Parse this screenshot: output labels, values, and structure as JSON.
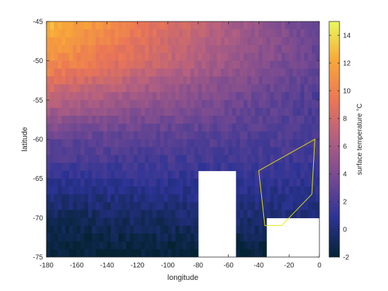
{
  "chart_data": {
    "type": "heatmap",
    "title": "",
    "xlabel": "longitude",
    "ylabel": "latitude",
    "xlim": [
      -180,
      0
    ],
    "ylim": [
      -75,
      -45
    ],
    "xticks": [
      -180,
      -160,
      -140,
      -120,
      -100,
      -80,
      -60,
      -40,
      -20,
      0
    ],
    "yticks": [
      -75,
      -70,
      -65,
      -60,
      -55,
      -50,
      -45
    ],
    "grid": false,
    "colorbar": {
      "label": "surface temperature °C",
      "range": [
        -2,
        15
      ],
      "ticks": [
        -2,
        0,
        2,
        4,
        6,
        8,
        10,
        12,
        14
      ],
      "colormap": [
        "#042333",
        "#2c3395",
        "#744992",
        "#b15f82",
        "#eb7655",
        "#f8a739",
        "#e8fa5b"
      ]
    },
    "temperature_trend": {
      "lat": [
        -45,
        -50,
        -55,
        -60,
        -65,
        -70,
        -75
      ],
      "west_lon_minus180": [
        13,
        11,
        7,
        3,
        1,
        -1,
        -2
      ],
      "east_lon_0": [
        3,
        3,
        2,
        2,
        1,
        0,
        -2
      ]
    },
    "missing_regions": [
      {
        "name": "land mass near -65 longitude",
        "lon": [
          -80,
          -55
        ],
        "lat": [
          -75,
          -64
        ]
      },
      {
        "name": "land mass near -20 longitude",
        "lon": [
          -35,
          0
        ],
        "lat": [
          -75,
          -70
        ]
      }
    ],
    "polygon": {
      "color": "#e6e600",
      "lon": [
        -40,
        -3,
        -5,
        -25,
        -36,
        -40
      ],
      "lat": [
        -64,
        -60,
        -67,
        -71,
        -71,
        -64
      ]
    }
  }
}
